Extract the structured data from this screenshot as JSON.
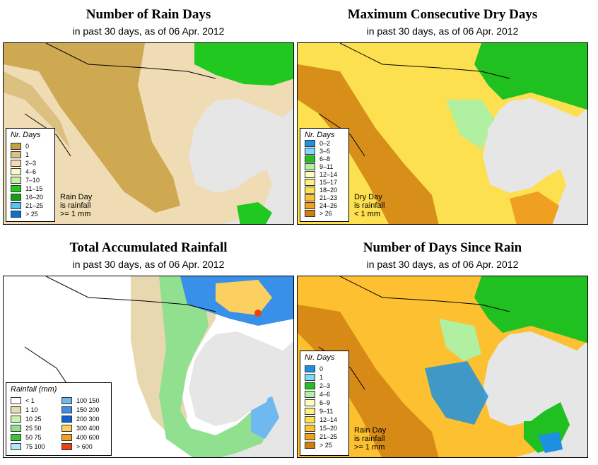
{
  "panels": [
    {
      "id": "rain_days",
      "title": "Number of Rain Days",
      "subtitle": "in past 30 days, as of  06 Apr. 2012",
      "legend_title": "Nr. Days",
      "legend": [
        {
          "label": "0",
          "color": "#c8a040"
        },
        {
          "label": "1",
          "color": "#dcc080"
        },
        {
          "label": "2–3",
          "color": "#f0dcb4"
        },
        {
          "label": "4–6",
          "color": "#fcf8c0"
        },
        {
          "label": "7–10",
          "color": "#c8f0a0"
        },
        {
          "label": "11–15",
          "color": "#20c820"
        },
        {
          "label": "16–20",
          "color": "#10a010"
        },
        {
          "label": "21–25",
          "color": "#50c8f0"
        },
        {
          "label": "> 25",
          "color": "#1070d0"
        }
      ],
      "note": [
        "Rain Day",
        "is rainfall",
        ">= 1 mm"
      ]
    },
    {
      "id": "dry_days",
      "title": "Maximum Consecutive Dry Days",
      "subtitle": "in past 30 days, as of  06 Apr. 2012",
      "legend_title": "Nr. Days",
      "legend": [
        {
          "label": "0–2",
          "color": "#1e90e0"
        },
        {
          "label": "3–5",
          "color": "#80d8f8"
        },
        {
          "label": "6–8",
          "color": "#20c020"
        },
        {
          "label": "9–11",
          "color": "#b0f0a0"
        },
        {
          "label": "12–14",
          "color": "#fcfcc0"
        },
        {
          "label": "15–17",
          "color": "#fcf080"
        },
        {
          "label": "18–20",
          "color": "#fce050"
        },
        {
          "label": "21–23",
          "color": "#fcc030"
        },
        {
          "label": "24–26",
          "color": "#f0a020"
        },
        {
          "label": "> 26",
          "color": "#d08010"
        }
      ],
      "note": [
        "Dry Day",
        "is rainfall",
        "< 1 mm"
      ]
    },
    {
      "id": "total_rain",
      "title": "Total Accumulated Rainfall",
      "subtitle": "in past 30 days, as of  06 Apr. 2012",
      "legend_title": "Rainfall (mm)",
      "legend_left": [
        {
          "label": "<  1",
          "color": "#ffffff"
        },
        {
          "label": "1    10",
          "color": "#e8d8b0"
        },
        {
          "label": "10    25",
          "color": "#c8f0b0"
        },
        {
          "label": "25    50",
          "color": "#90e090"
        },
        {
          "label": "50    75",
          "color": "#40c040"
        },
        {
          "label": "75   100",
          "color": "#b0e8f8"
        }
      ],
      "legend_right": [
        {
          "label": "100   150",
          "color": "#70b8f0"
        },
        {
          "label": "150   200",
          "color": "#3890e8"
        },
        {
          "label": "200   300",
          "color": "#1060d0"
        },
        {
          "label": "300   400",
          "color": "#fcd060"
        },
        {
          "label": "400   600",
          "color": "#f0a020"
        },
        {
          "label": "> 600",
          "color": "#f04010"
        }
      ]
    },
    {
      "id": "days_since",
      "title": "Number of Days Since Rain",
      "subtitle": "in past 30 days, as of  06 Apr. 2012",
      "legend_title": "Nr. Days",
      "legend": [
        {
          "label": "0",
          "color": "#1e90e0"
        },
        {
          "label": "1",
          "color": "#80d8f8"
        },
        {
          "label": "2–3",
          "color": "#20c020"
        },
        {
          "label": "4–6",
          "color": "#b0f0a0"
        },
        {
          "label": "6–9",
          "color": "#fcfcc0"
        },
        {
          "label": "9–11",
          "color": "#fcf080"
        },
        {
          "label": "12–14",
          "color": "#fce050"
        },
        {
          "label": "15–20",
          "color": "#fcc030"
        },
        {
          "label": "21–25",
          "color": "#f0a020"
        },
        {
          "label": "> 25",
          "color": "#d08010"
        }
      ],
      "note": [
        "Rain Day",
        "is rainfall",
        ">= 1 mm"
      ]
    }
  ]
}
